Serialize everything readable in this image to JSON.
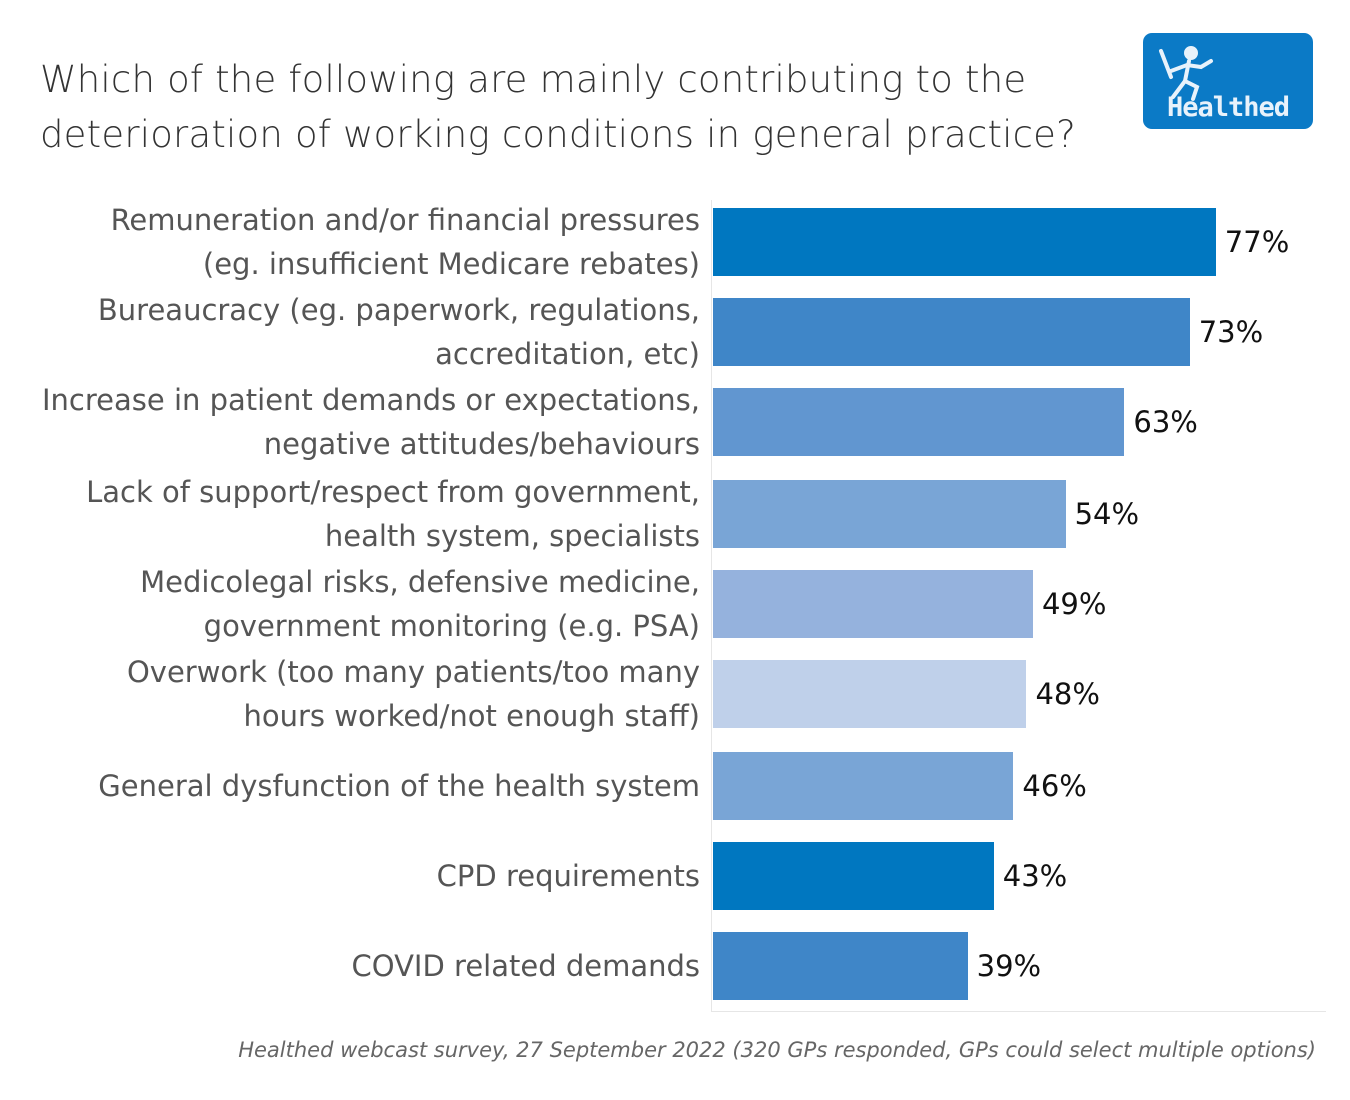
{
  "chart_data": {
    "type": "bar",
    "orientation": "horizontal",
    "title": "Which of the following are mainly contributing to the deterioration of working conditions in general practice?",
    "title_lines": [
      "Which of the following are mainly contributing to the",
      "deterioration of working conditions in general practice?"
    ],
    "categories": [
      [
        "Remuneration and/or financial pressures",
        "(eg. insufficient Medicare rebates)"
      ],
      [
        "Bureaucracy (eg. paperwork, regulations,",
        "accreditation, etc)"
      ],
      [
        "Increase in patient demands or expectations,",
        "negative attitudes/behaviours"
      ],
      [
        "Lack of support/respect from government,",
        "health system, specialists"
      ],
      [
        "Medicolegal risks, defensive medicine,",
        "government monitoring (e.g. PSA)"
      ],
      [
        "Overwork (too many patients/too many",
        "hours worked/not enough staff)"
      ],
      [
        "General dysfunction of the health system"
      ],
      [
        "CPD requirements"
      ],
      [
        "COVID related demands"
      ]
    ],
    "values": [
      77,
      73,
      63,
      54,
      49,
      48,
      46,
      43,
      39
    ],
    "value_labels": [
      "77%",
      "73%",
      "63%",
      "54%",
      "49%",
      "48%",
      "46%",
      "43%",
      "39%"
    ],
    "colors": [
      "#0077c0",
      "#3f86c8",
      "#6196d0",
      "#79a5d6",
      "#95b2dd",
      "#bfd0ea",
      "#79a5d6",
      "#0077c0",
      "#3f86c8"
    ],
    "xlim": [
      0,
      100
    ],
    "xlabel": "",
    "ylabel": "",
    "grid": false,
    "legend": "none",
    "footnote": "Healthed webcast survey, 27 September 2022 (320 GPs responded, GPs could select multiple options)",
    "logo_text": "Healthed"
  }
}
